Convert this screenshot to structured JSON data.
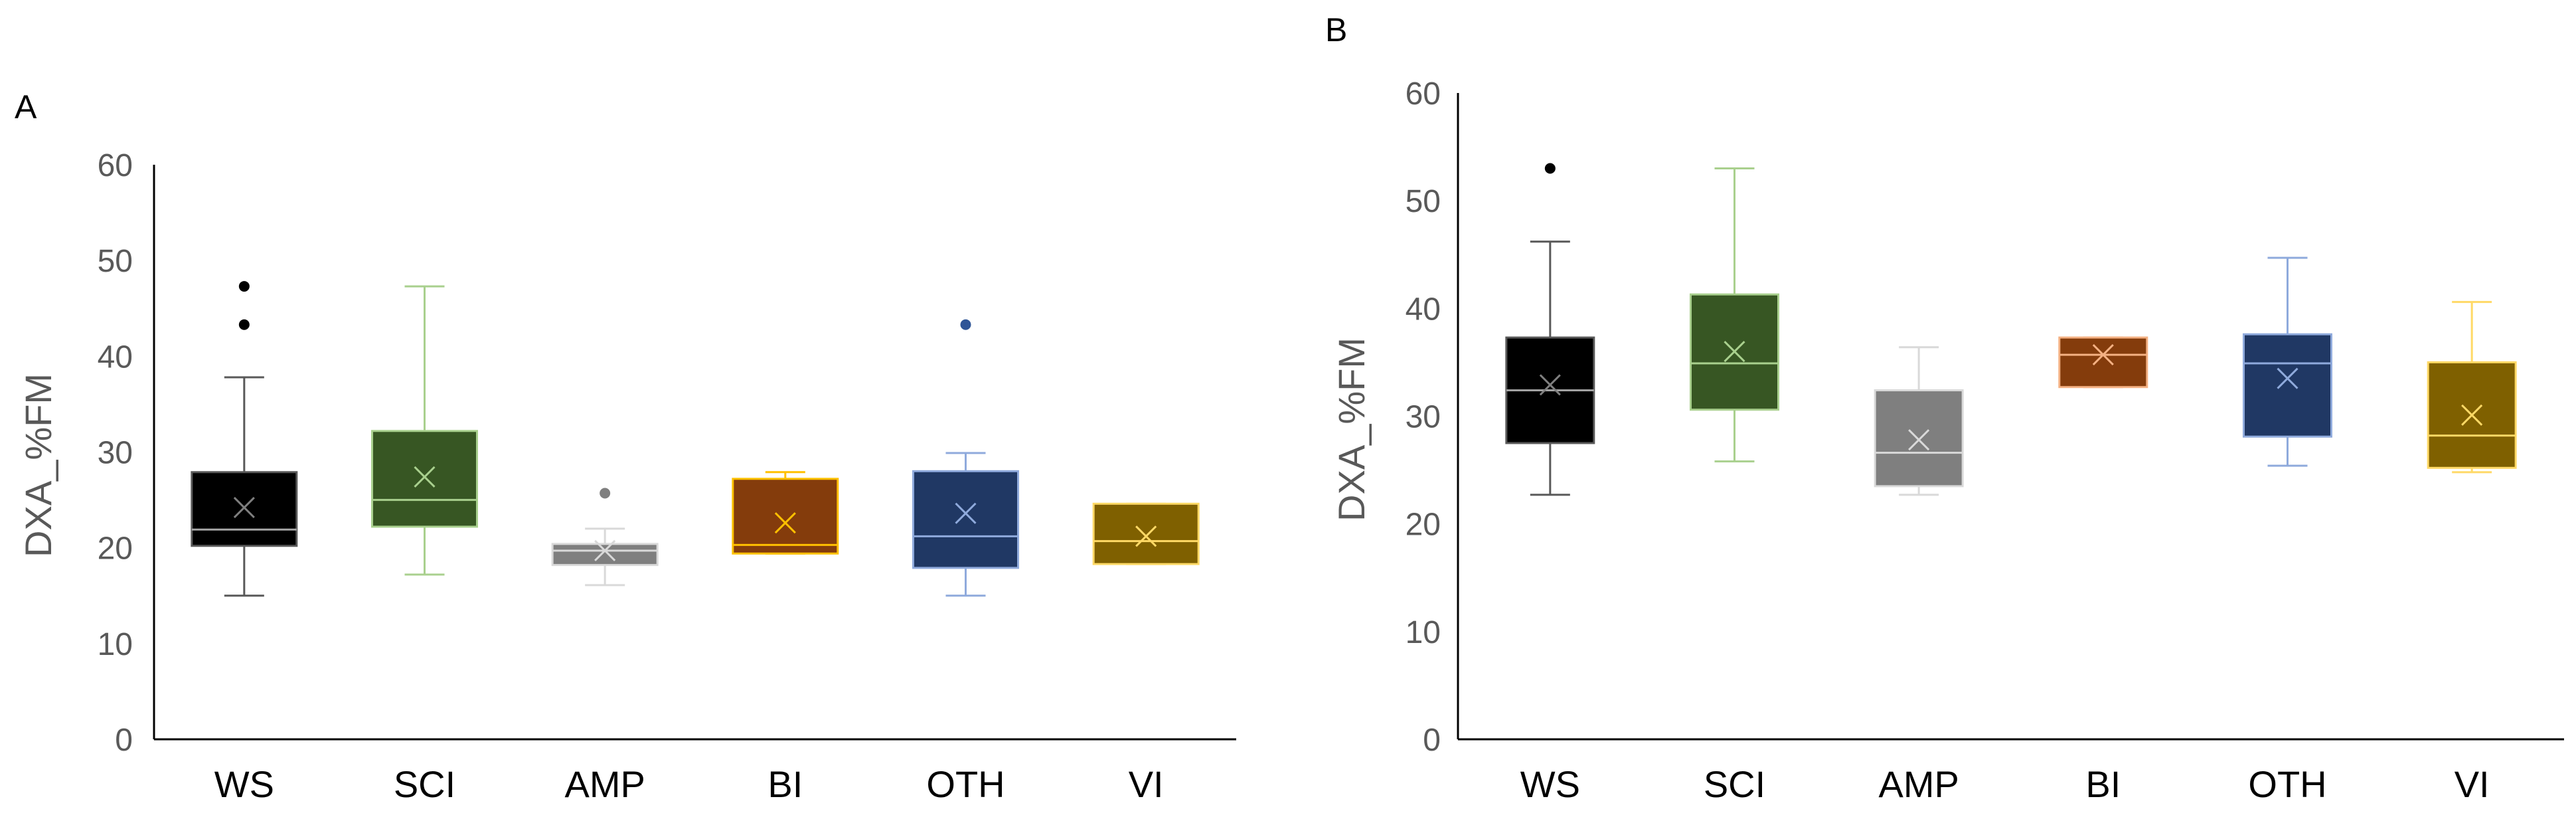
{
  "chart_data": [
    {
      "type": "box",
      "panel_label": "A",
      "ylabel": "DXA_%FM",
      "xlabel": "",
      "ylim": [
        0,
        60
      ],
      "yticks": [
        0,
        10,
        20,
        30,
        40,
        50,
        60
      ],
      "grid": false,
      "legend": "none",
      "categories": [
        "WS",
        "SCI",
        "AMP",
        "BI",
        "OTH",
        "VI"
      ],
      "boxes": [
        {
          "category": "WS",
          "min": 15.0,
          "q1": 20.2,
          "median": 21.9,
          "q3": 27.9,
          "max": 37.8,
          "mean": 24.2,
          "outliers": [
            43.3,
            47.3
          ],
          "fill": "#000000",
          "stroke": "#595959",
          "whisker": "#595959",
          "median_color": "#a6a6a6",
          "mean_color": "#7f7f7f",
          "outlier_color": "#000000"
        },
        {
          "category": "SCI",
          "min": 17.2,
          "q1": 22.2,
          "median": 25.0,
          "q3": 32.2,
          "max": 47.3,
          "mean": 27.4,
          "outliers": [],
          "fill": "#375623",
          "stroke": "#a9d08e",
          "whisker": "#a9d08e",
          "median_color": "#a9d08e",
          "mean_color": "#a9d08e",
          "outlier_color": "#375623"
        },
        {
          "category": "AMP",
          "min": 16.1,
          "q1": 18.2,
          "median": 19.7,
          "q3": 20.4,
          "max": 22.0,
          "mean": 19.7,
          "outliers": [
            25.7
          ],
          "fill": "#7f7f7f",
          "stroke": "#d9d9d9",
          "whisker": "#d9d9d9",
          "median_color": "#d9d9d9",
          "mean_color": "#d9d9d9",
          "outlier_color": "#7f7f7f"
        },
        {
          "category": "BI",
          "min": 19.4,
          "q1": 19.4,
          "median": 20.3,
          "q3": 27.2,
          "max": 27.9,
          "mean": 22.6,
          "outliers": [],
          "fill": "#843c0c",
          "stroke": "#ffc000",
          "whisker": "#ffc000",
          "median_color": "#ffc000",
          "mean_color": "#ffc000",
          "outlier_color": "#843c0c"
        },
        {
          "category": "OTH",
          "min": 15.0,
          "q1": 17.9,
          "median": 21.2,
          "q3": 28.0,
          "max": 29.9,
          "mean": 23.6,
          "outliers": [
            43.3
          ],
          "fill": "#203864",
          "stroke": "#8faadc",
          "whisker": "#8faadc",
          "median_color": "#8faadc",
          "mean_color": "#8faadc",
          "outlier_color": "#2f5597"
        },
        {
          "category": "VI",
          "min": 18.3,
          "q1": 18.3,
          "median": 20.7,
          "q3": 24.6,
          "max": 24.6,
          "mean": 21.2,
          "outliers": [],
          "fill": "#7f6000",
          "stroke": "#ffd966",
          "whisker": "#ffd966",
          "median_color": "#ffd966",
          "mean_color": "#ffd966",
          "outlier_color": "#7f6000"
        }
      ]
    },
    {
      "type": "box",
      "panel_label": "B",
      "ylabel": "DXA_%FM",
      "xlabel": "",
      "ylim": [
        0,
        60
      ],
      "yticks": [
        0,
        10,
        20,
        30,
        40,
        50,
        60
      ],
      "grid": false,
      "legend": "none",
      "categories": [
        "WS",
        "SCI",
        "AMP",
        "BI",
        "OTH",
        "VI"
      ],
      "boxes": [
        {
          "category": "WS",
          "min": 22.7,
          "q1": 27.5,
          "median": 32.4,
          "q3": 37.3,
          "max": 46.2,
          "mean": 32.9,
          "outliers": [
            53.0
          ],
          "fill": "#000000",
          "stroke": "#595959",
          "whisker": "#595959",
          "median_color": "#a6a6a6",
          "mean_color": "#7f7f7f",
          "outlier_color": "#000000"
        },
        {
          "category": "SCI",
          "min": 25.8,
          "q1": 30.6,
          "median": 34.9,
          "q3": 41.3,
          "max": 53.0,
          "mean": 36.0,
          "outliers": [],
          "fill": "#375623",
          "stroke": "#a9d08e",
          "whisker": "#a9d08e",
          "median_color": "#a9d08e",
          "mean_color": "#a9d08e",
          "outlier_color": "#375623"
        },
        {
          "category": "AMP",
          "min": 22.7,
          "q1": 23.5,
          "median": 26.6,
          "q3": 32.4,
          "max": 36.4,
          "mean": 27.8,
          "outliers": [],
          "fill": "#7f7f7f",
          "stroke": "#d9d9d9",
          "whisker": "#d9d9d9",
          "median_color": "#d9d9d9",
          "mean_color": "#d9d9d9",
          "outlier_color": "#7f7f7f"
        },
        {
          "category": "BI",
          "min": 32.7,
          "q1": 32.7,
          "median": 35.7,
          "q3": 37.3,
          "max": 37.3,
          "mean": 35.7,
          "outliers": [],
          "fill": "#843c0c",
          "stroke": "#f4b183",
          "whisker": "#f4b183",
          "median_color": "#f4b183",
          "mean_color": "#f4b183",
          "outlier_color": "#843c0c"
        },
        {
          "category": "OTH",
          "min": 25.4,
          "q1": 28.1,
          "median": 34.9,
          "q3": 37.6,
          "max": 44.7,
          "mean": 33.5,
          "outliers": [],
          "fill": "#203864",
          "stroke": "#8faadc",
          "whisker": "#8faadc",
          "median_color": "#8faadc",
          "mean_color": "#8faadc",
          "outlier_color": "#2f5597"
        },
        {
          "category": "VI",
          "min": 24.8,
          "q1": 25.2,
          "median": 28.2,
          "q3": 35.0,
          "max": 40.6,
          "mean": 30.1,
          "outliers": [],
          "fill": "#7f6000",
          "stroke": "#ffd966",
          "whisker": "#ffd966",
          "median_color": "#ffd966",
          "mean_color": "#ffd966",
          "outlier_color": "#7f6000"
        }
      ]
    }
  ]
}
